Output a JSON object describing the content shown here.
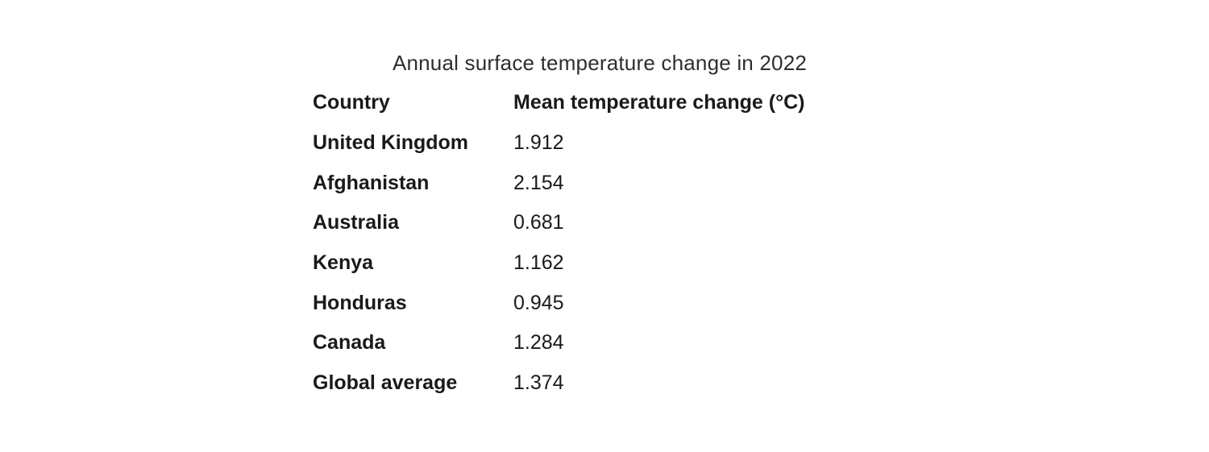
{
  "title": "Annual surface temperature change in 2022",
  "colors": {
    "background": "#ffffff",
    "title_text": "#2e2e2e",
    "table_text": "#1a1a1a"
  },
  "table": {
    "headers": [
      "Country",
      "Mean temperature change (°C)"
    ],
    "rows": [
      {
        "country": "United Kingdom",
        "value": "1.912"
      },
      {
        "country": "Afghanistan",
        "value": "2.154"
      },
      {
        "country": "Australia",
        "value": "0.681"
      },
      {
        "country": "Kenya",
        "value": "1.162"
      },
      {
        "country": "Honduras",
        "value": "0.945"
      },
      {
        "country": "Canada",
        "value": "1.284"
      },
      {
        "country": "Global average",
        "value": "1.374"
      }
    ]
  },
  "chart_data": {
    "type": "table",
    "title": "Annual surface temperature change in 2022",
    "columns": [
      "Country",
      "Mean temperature change (°C)"
    ],
    "categories": [
      "United Kingdom",
      "Afghanistan",
      "Australia",
      "Kenya",
      "Honduras",
      "Canada",
      "Global average"
    ],
    "values": [
      1.912,
      2.154,
      0.681,
      1.162,
      0.945,
      1.284,
      1.374
    ],
    "value_unit": "°C",
    "legend": "none",
    "grid": false
  }
}
